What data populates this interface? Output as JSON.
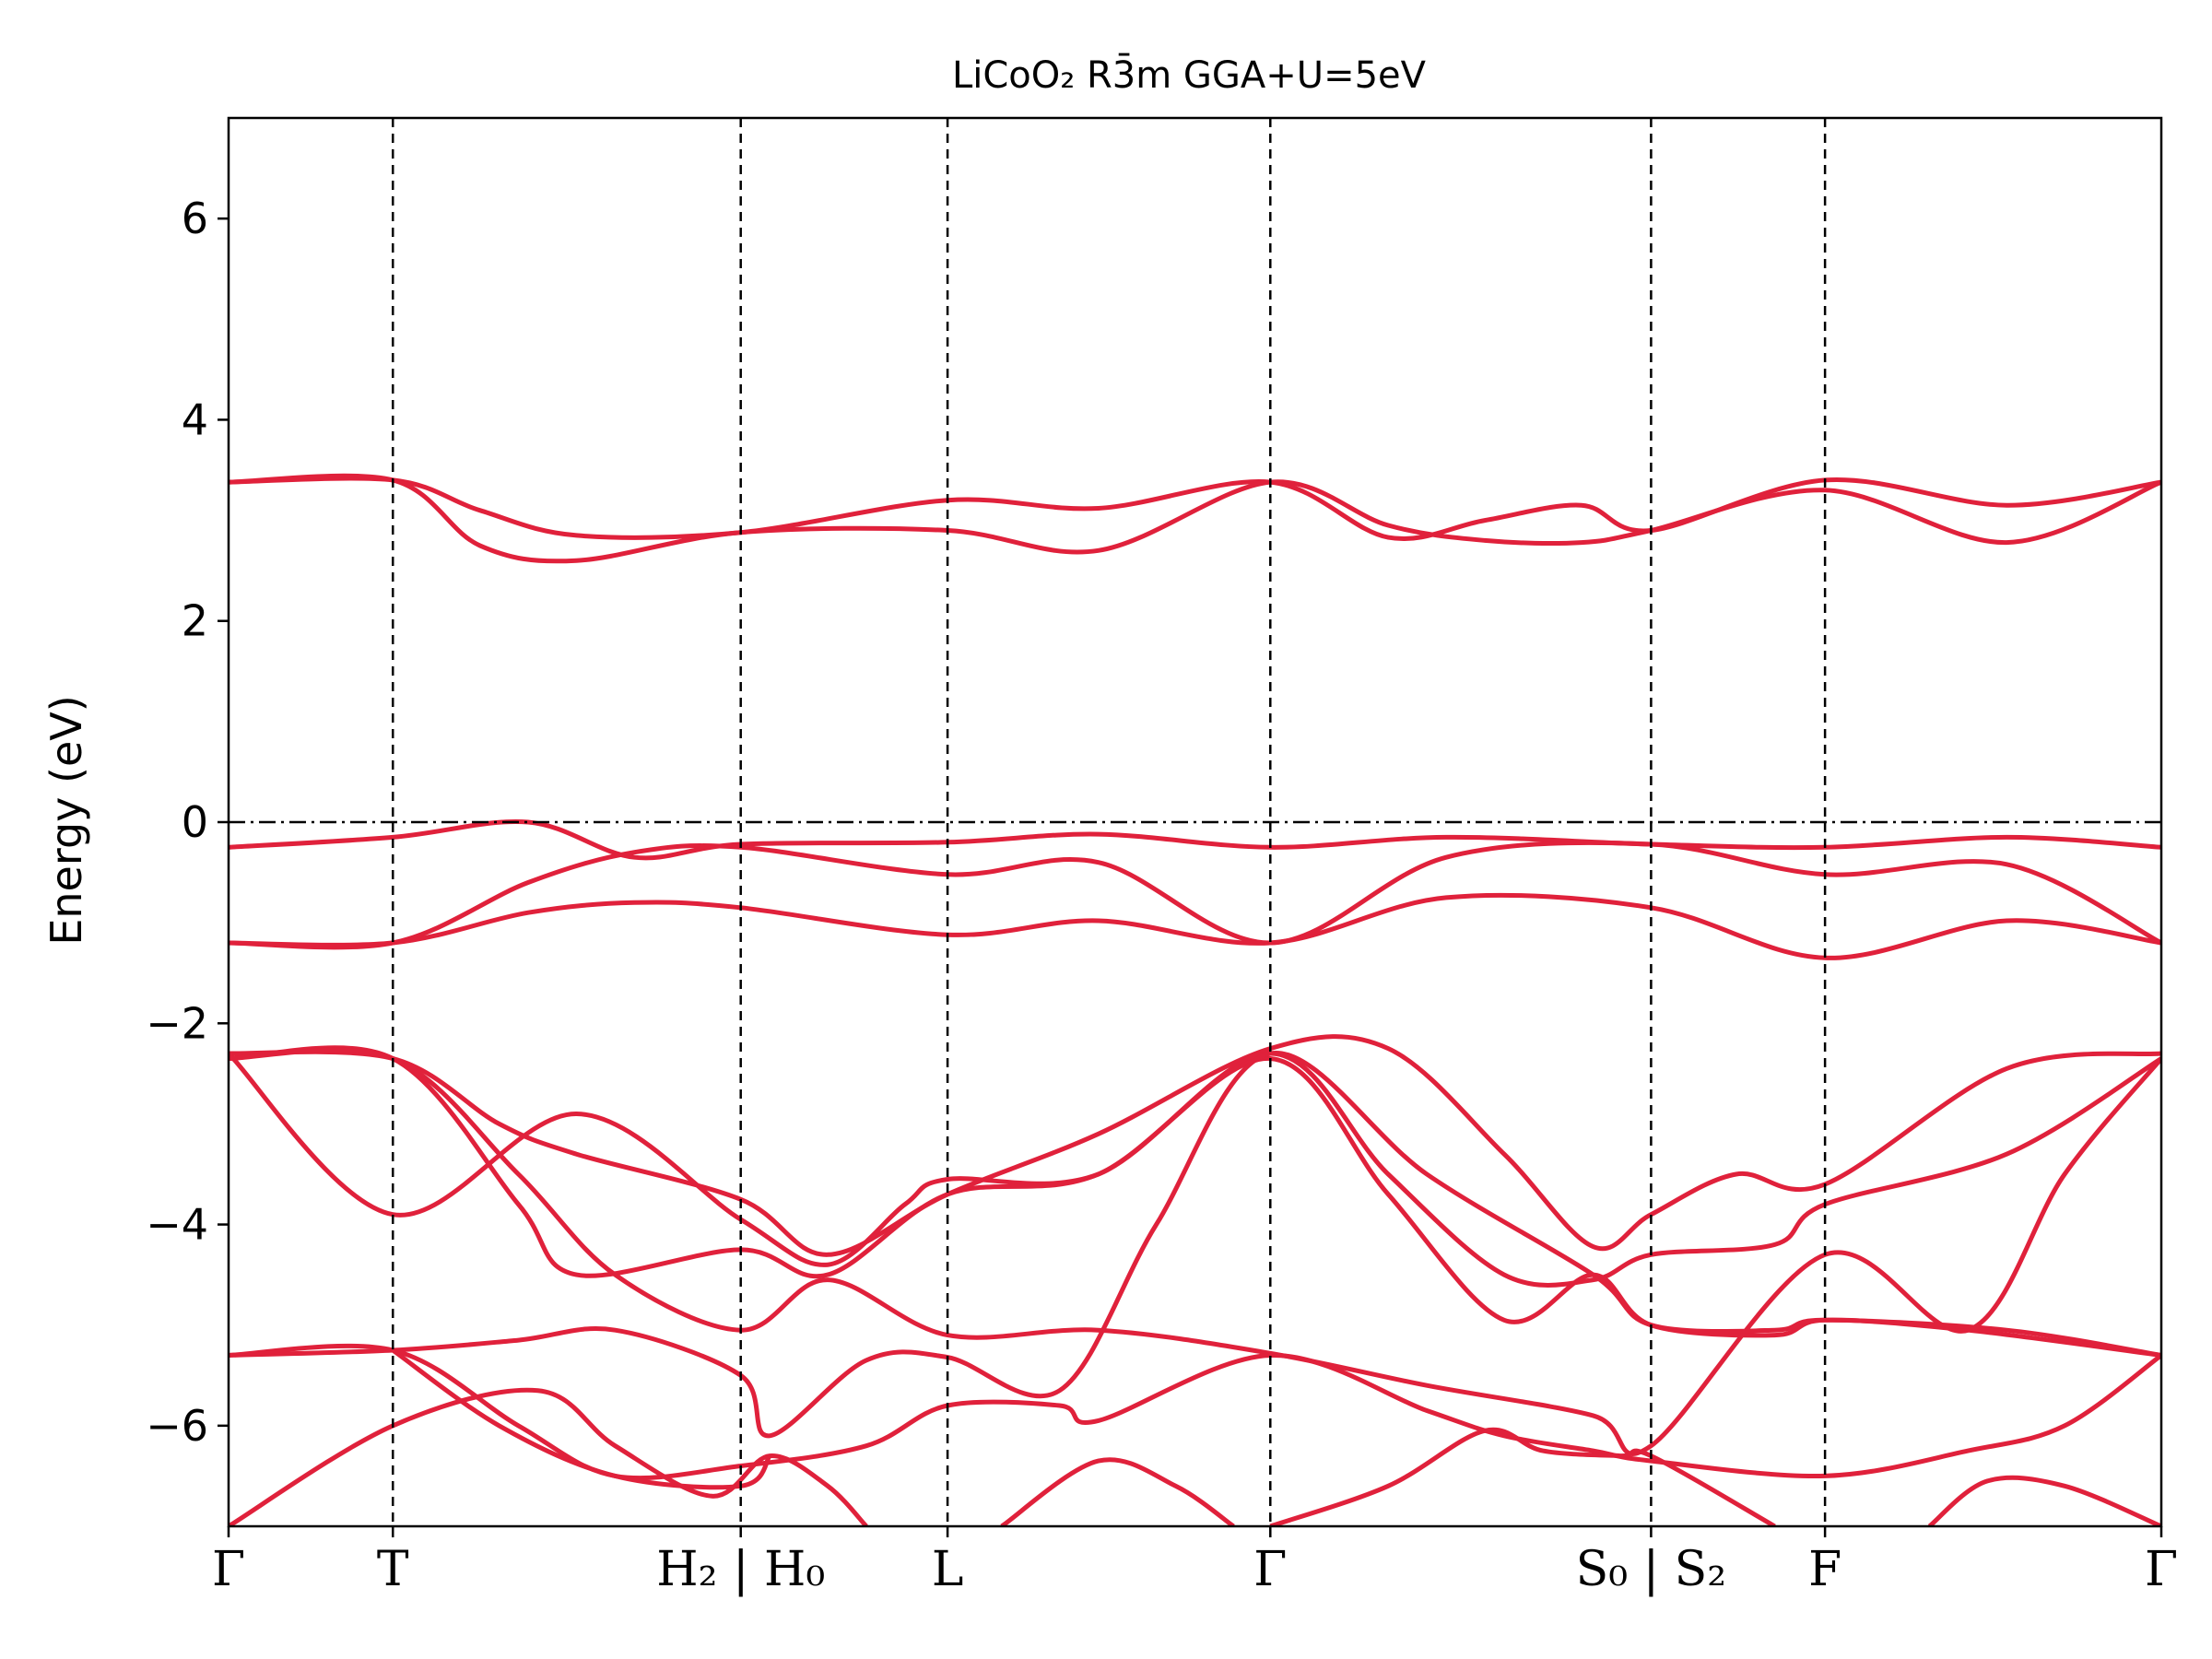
{
  "chart_data": {
    "type": "line",
    "title": "LiCoO₂ R3̄m GGA+U=5eV",
    "xlabel": "",
    "ylabel": "Energy (eV)",
    "ylim": [
      -7,
      7
    ],
    "yticks": [
      -6,
      -4,
      -2,
      0,
      2,
      4,
      6
    ],
    "ytick_labels": [
      "−6",
      "−4",
      "−2",
      "0",
      "2",
      "4",
      "6"
    ],
    "xlim": [
      0,
      1
    ],
    "kpoints": [
      {
        "label": "Γ",
        "x": 0.0
      },
      {
        "label": "T",
        "x": 0.085
      },
      {
        "label": "H₂ | H₀",
        "x": 0.265
      },
      {
        "label": "L",
        "x": 0.372
      },
      {
        "label": "Γ",
        "x": 0.539
      },
      {
        "label": "S₀ | S₂",
        "x": 0.736
      },
      {
        "label": "F",
        "x": 0.826
      },
      {
        "label": "Γ",
        "x": 1.0
      }
    ],
    "fermi_level": 0,
    "grid": false,
    "line_color": "#e0213b",
    "series": [
      {
        "points": [
          [
            0,
            3.38
          ],
          [
            0.085,
            3.4
          ],
          [
            0.13,
            3.1
          ],
          [
            0.18,
            2.85
          ],
          [
            0.265,
            2.88
          ],
          [
            0.372,
            3.2
          ],
          [
            0.45,
            3.12
          ],
          [
            0.539,
            3.38
          ],
          [
            0.6,
            2.83
          ],
          [
            0.65,
            3.0
          ],
          [
            0.7,
            3.15
          ],
          [
            0.736,
            2.9
          ],
          [
            0.826,
            3.4
          ],
          [
            0.92,
            3.15
          ],
          [
            1.0,
            3.38
          ]
        ]
      },
      {
        "points": [
          [
            0,
            3.38
          ],
          [
            0.085,
            3.4
          ],
          [
            0.13,
            2.75
          ],
          [
            0.18,
            2.6
          ],
          [
            0.265,
            2.88
          ],
          [
            0.372,
            2.9
          ],
          [
            0.45,
            2.7
          ],
          [
            0.539,
            3.38
          ],
          [
            0.6,
            2.95
          ],
          [
            0.65,
            2.8
          ],
          [
            0.7,
            2.78
          ],
          [
            0.736,
            2.9
          ],
          [
            0.826,
            3.3
          ],
          [
            0.92,
            2.78
          ],
          [
            1.0,
            3.38
          ]
        ]
      },
      {
        "points": [
          [
            0,
            -0.25
          ],
          [
            0.085,
            -0.15
          ],
          [
            0.155,
            0.0
          ],
          [
            0.21,
            -0.35
          ],
          [
            0.265,
            -0.22
          ],
          [
            0.372,
            -0.2
          ],
          [
            0.45,
            -0.12
          ],
          [
            0.539,
            -0.25
          ],
          [
            0.63,
            -0.15
          ],
          [
            0.736,
            -0.22
          ],
          [
            0.826,
            -0.25
          ],
          [
            0.92,
            -0.15
          ],
          [
            1.0,
            -0.25
          ]
        ]
      },
      {
        "points": [
          [
            0,
            -1.2
          ],
          [
            0.085,
            -1.2
          ],
          [
            0.155,
            -0.6
          ],
          [
            0.21,
            -0.3
          ],
          [
            0.265,
            -0.25
          ],
          [
            0.372,
            -0.52
          ],
          [
            0.45,
            -0.4
          ],
          [
            0.539,
            -1.2
          ],
          [
            0.63,
            -0.35
          ],
          [
            0.736,
            -0.22
          ],
          [
            0.826,
            -0.52
          ],
          [
            0.92,
            -0.42
          ],
          [
            1.0,
            -1.2
          ]
        ]
      },
      {
        "points": [
          [
            0,
            -1.2
          ],
          [
            0.085,
            -1.2
          ],
          [
            0.155,
            -0.9
          ],
          [
            0.21,
            -0.8
          ],
          [
            0.265,
            -0.85
          ],
          [
            0.372,
            -1.12
          ],
          [
            0.45,
            -0.98
          ],
          [
            0.539,
            -1.2
          ],
          [
            0.63,
            -0.75
          ],
          [
            0.736,
            -0.85
          ],
          [
            0.826,
            -1.35
          ],
          [
            0.92,
            -0.98
          ],
          [
            1.0,
            -1.2
          ]
        ]
      },
      {
        "points": [
          [
            0,
            -2.3
          ],
          [
            0.085,
            -2.35
          ],
          [
            0.14,
            -3.0
          ],
          [
            0.18,
            -3.3
          ],
          [
            0.265,
            -3.75
          ],
          [
            0.31,
            -4.3
          ],
          [
            0.372,
            -3.7
          ],
          [
            0.45,
            -3.1
          ],
          [
            0.539,
            -2.25
          ],
          [
            0.6,
            -2.25
          ],
          [
            0.66,
            -3.3
          ],
          [
            0.706,
            -4.22
          ],
          [
            0.736,
            -3.9
          ],
          [
            0.78,
            -3.5
          ],
          [
            0.826,
            -3.6
          ],
          [
            0.92,
            -2.45
          ],
          [
            1.0,
            -2.3
          ]
        ]
      },
      {
        "points": [
          [
            0,
            -2.3
          ],
          [
            0.085,
            -3.9
          ],
          [
            0.18,
            -2.9
          ],
          [
            0.265,
            -3.95
          ],
          [
            0.31,
            -4.4
          ],
          [
            0.35,
            -3.8
          ],
          [
            0.372,
            -3.55
          ],
          [
            0.45,
            -3.5
          ],
          [
            0.539,
            -2.3
          ],
          [
            0.6,
            -3.5
          ],
          [
            0.66,
            -4.5
          ],
          [
            0.706,
            -4.55
          ],
          [
            0.736,
            -4.3
          ],
          [
            0.8,
            -4.2
          ],
          [
            0.826,
            -3.8
          ],
          [
            0.92,
            -3.3
          ],
          [
            1.0,
            -2.35
          ]
        ]
      },
      {
        "points": [
          [
            0,
            -2.35
          ],
          [
            0.085,
            -2.35
          ],
          [
            0.15,
            -3.8
          ],
          [
            0.18,
            -4.5
          ],
          [
            0.265,
            -4.25
          ],
          [
            0.31,
            -4.5
          ],
          [
            0.372,
            -3.7
          ],
          [
            0.45,
            -3.5
          ],
          [
            0.539,
            -2.35
          ],
          [
            0.6,
            -3.7
          ],
          [
            0.66,
            -4.95
          ],
          [
            0.706,
            -4.5
          ],
          [
            0.736,
            -5.0
          ],
          [
            0.8,
            -5.1
          ],
          [
            0.826,
            -4.95
          ],
          [
            0.9,
            -5.05
          ],
          [
            1.0,
            -5.3
          ]
        ]
      },
      {
        "points": [
          [
            0,
            -2.35
          ],
          [
            0.085,
            -2.35
          ],
          [
            0.15,
            -3.5
          ],
          [
            0.2,
            -4.5
          ],
          [
            0.265,
            -5.05
          ],
          [
            0.31,
            -4.55
          ],
          [
            0.372,
            -5.1
          ],
          [
            0.45,
            -5.05
          ],
          [
            0.539,
            -5.28
          ],
          [
            0.62,
            -5.6
          ],
          [
            0.706,
            -5.9
          ],
          [
            0.736,
            -6.2
          ],
          [
            0.826,
            -4.3
          ],
          [
            0.9,
            -5.05
          ],
          [
            0.95,
            -3.5
          ],
          [
            1.0,
            -2.35
          ]
        ]
      },
      {
        "points": [
          [
            0,
            -5.3
          ],
          [
            0.085,
            -5.25
          ],
          [
            0.15,
            -5.15
          ],
          [
            0.2,
            -5.05
          ],
          [
            0.265,
            -5.5
          ],
          [
            0.28,
            -6.1
          ],
          [
            0.33,
            -5.35
          ],
          [
            0.372,
            -5.32
          ],
          [
            0.43,
            -5.65
          ],
          [
            0.48,
            -4.0
          ],
          [
            0.539,
            -2.3
          ],
          [
            0.62,
            -3.5
          ],
          [
            0.706,
            -4.5
          ],
          [
            0.736,
            -5.0
          ],
          [
            0.8,
            -5.05
          ],
          [
            0.826,
            -4.95
          ],
          [
            0.92,
            -5.05
          ],
          [
            1.0,
            -5.3
          ]
        ]
      },
      {
        "points": [
          [
            0,
            -5.3
          ],
          [
            0.085,
            -5.25
          ],
          [
            0.15,
            -6.0
          ],
          [
            0.2,
            -6.5
          ],
          [
            0.265,
            -6.4
          ],
          [
            0.33,
            -6.2
          ],
          [
            0.372,
            -5.8
          ],
          [
            0.43,
            -5.8
          ],
          [
            0.45,
            -5.95
          ],
          [
            0.539,
            -5.3
          ],
          [
            0.62,
            -5.85
          ],
          [
            0.66,
            -6.1
          ],
          [
            0.706,
            -6.25
          ],
          [
            0.736,
            -6.35
          ],
          [
            0.826,
            -6.5
          ],
          [
            0.9,
            -6.25
          ],
          [
            0.95,
            -6.0
          ],
          [
            1.0,
            -5.3
          ]
        ]
      },
      {
        "points": [
          [
            0,
            -7.0
          ],
          [
            0.085,
            -6.0
          ],
          [
            0.16,
            -5.65
          ],
          [
            0.2,
            -6.2
          ],
          [
            0.25,
            -6.7
          ],
          [
            0.28,
            -6.3
          ],
          [
            0.31,
            -6.6
          ],
          [
            0.33,
            -7.0
          ]
        ]
      },
      {
        "points": [
          [
            0.085,
            -5.25
          ],
          [
            0.14,
            -6.0
          ],
          [
            0.2,
            -6.5
          ],
          [
            0.265,
            -6.6
          ],
          [
            0.28,
            -6.3
          ]
        ]
      },
      {
        "points": [
          [
            0.4,
            -7.0
          ],
          [
            0.45,
            -6.35
          ],
          [
            0.49,
            -6.6
          ],
          [
            0.52,
            -7.0
          ]
        ]
      },
      {
        "points": [
          [
            0.539,
            -7.0
          ],
          [
            0.6,
            -6.6
          ],
          [
            0.65,
            -6.05
          ],
          [
            0.68,
            -6.25
          ],
          [
            0.72,
            -6.3
          ],
          [
            0.736,
            -6.3
          ],
          [
            0.8,
            -7.0
          ]
        ]
      },
      {
        "points": [
          [
            0.88,
            -7.0
          ],
          [
            0.91,
            -6.55
          ],
          [
            0.95,
            -6.6
          ],
          [
            1.0,
            -7.0
          ]
        ]
      }
    ]
  }
}
